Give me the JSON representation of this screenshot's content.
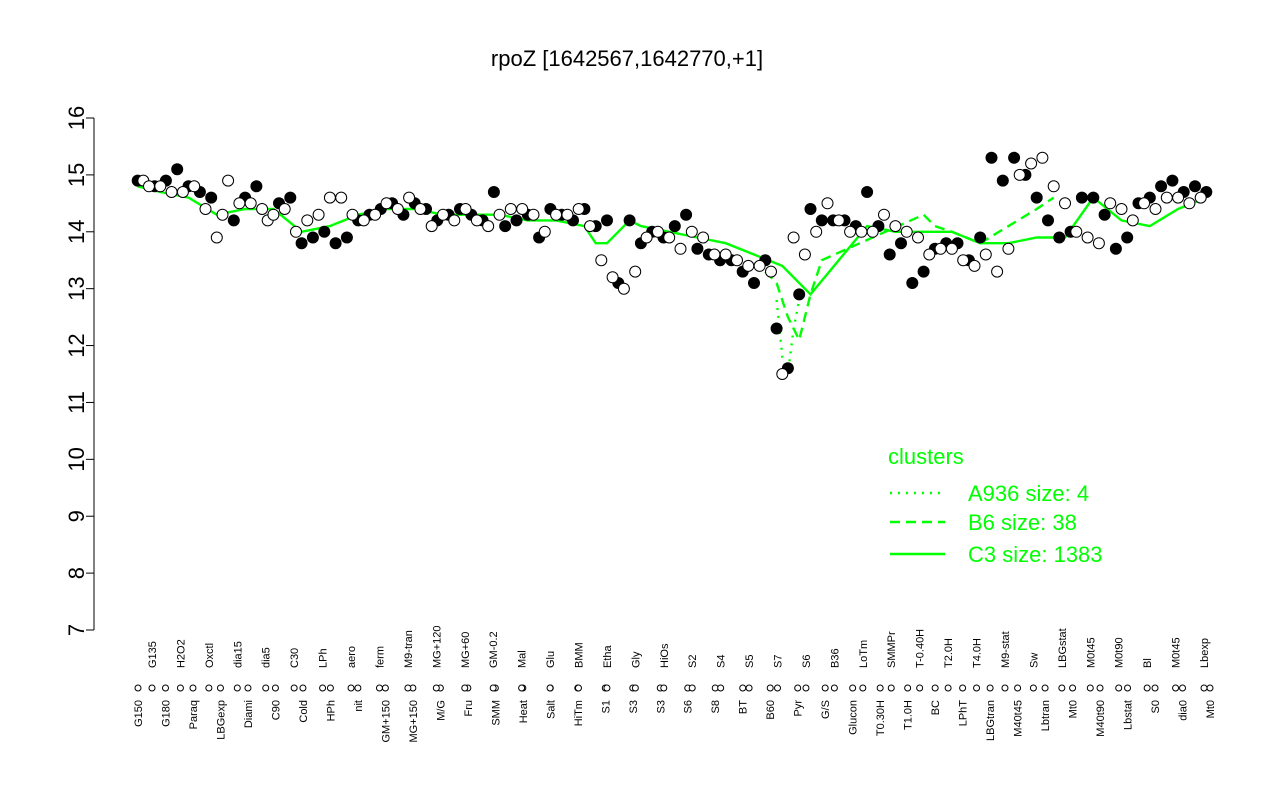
{
  "chart_data": {
    "type": "scatter",
    "title": "rpoZ [1642567,1642770,+1]",
    "xlabel": "",
    "ylabel": "",
    "ylim": [
      7,
      16
    ],
    "yticks": [
      7,
      8,
      9,
      10,
      11,
      12,
      13,
      14,
      15,
      16
    ],
    "xtick_labels_row1": [
      "G150",
      "G180",
      "Paraq",
      "LBGexp",
      "Diami",
      "C90",
      "Cold",
      "HPh",
      "nit",
      "GM+150",
      "MG+150",
      "M/G",
      "Fru",
      "SMM",
      "Heat",
      "Salt",
      "HiTm",
      "S1",
      "S3",
      "S3",
      "S6",
      "S8",
      "BT",
      "B60",
      "Pyr",
      "G/S",
      "Glucon",
      "T0.30H",
      "T1.0H",
      "BC",
      "LPhT",
      "LBGtran",
      "M40t45",
      "Lbtran",
      "Mt0",
      "M40t90",
      "Lbstat",
      "S0",
      "dia0",
      "Mt0"
    ],
    "xtick_labels_row2": [
      "G135",
      "H2O2",
      "Oxctl",
      "dia15",
      "dia5",
      "C30",
      "LPh",
      "aero",
      "ferm",
      "M9-tran",
      "MG+120",
      "MG+60",
      "GM-0.2",
      "Mal",
      "Glu",
      "BMM",
      "Etha",
      "Gly",
      "HiOs",
      "S2",
      "S4",
      "S5",
      "S7",
      "S6",
      "B36",
      "LoTm",
      "SMMPr",
      "T-0.40H",
      "T2.0H",
      "T4.0H",
      "M9-stat",
      "Sw",
      "LBGstat",
      "M0t45",
      "M0t90",
      "Bl",
      "M0t45",
      "Lbexp"
    ],
    "series": [
      {
        "name": "",
        "kind": "filled",
        "x": [
          1,
          4,
          6,
          8,
          10,
          12,
          14,
          18,
          20,
          22,
          26,
          28,
          30,
          32,
          34,
          36,
          38,
          40,
          42,
          44,
          46,
          48,
          50,
          52,
          54,
          56,
          58,
          60,
          62,
          64,
          66,
          68,
          70,
          72,
          74,
          76,
          78,
          80,
          82,
          84,
          86,
          88,
          90,
          92,
          94,
          96,
          98,
          100,
          102,
          104,
          106,
          108,
          110,
          112,
          114,
          116,
          118,
          120,
          122,
          124,
          126,
          128,
          130,
          132,
          134,
          136,
          138,
          140,
          142,
          144,
          146,
          148,
          150,
          152,
          154,
          156,
          158,
          160,
          162,
          164,
          166,
          168,
          170,
          172,
          174,
          176,
          178,
          180,
          182,
          184,
          186,
          188,
          190
        ],
        "y": [
          14.9,
          14.8,
          14.9,
          15.1,
          14.8,
          14.7,
          14.6,
          14.2,
          14.6,
          14.8,
          14.5,
          14.6,
          13.8,
          13.9,
          14.0,
          13.8,
          13.9,
          14.2,
          14.3,
          14.4,
          14.5,
          14.3,
          14.5,
          14.4,
          14.2,
          14.3,
          14.4,
          14.3,
          14.2,
          14.7,
          14.1,
          14.2,
          14.3,
          13.9,
          14.4,
          14.3,
          14.2,
          14.4,
          14.1,
          14.2,
          13.1,
          14.2,
          13.8,
          14.0,
          13.9,
          14.1,
          14.3,
          13.7,
          13.6,
          13.5,
          13.5,
          13.3,
          13.1,
          13.5,
          12.3,
          11.6,
          12.9,
          14.4,
          14.2,
          14.2,
          14.2,
          14.1,
          14.7,
          14.1,
          13.6,
          13.8,
          13.1,
          13.3,
          13.7,
          13.8,
          13.8,
          13.5,
          13.9,
          15.3,
          14.9,
          15.3,
          15.0,
          14.6,
          14.2,
          13.9,
          14.0,
          14.6,
          14.6,
          14.3,
          13.7,
          13.9,
          14.5,
          14.6,
          14.8,
          14.9,
          14.7,
          14.8,
          14.7
        ]
      },
      {
        "name": "",
        "kind": "open",
        "x": [
          2,
          3,
          5,
          7,
          9,
          11,
          13,
          15,
          16,
          17,
          19,
          21,
          23,
          24,
          25,
          27,
          29,
          31,
          33,
          35,
          37,
          39,
          41,
          43,
          45,
          47,
          49,
          51,
          53,
          55,
          57,
          59,
          61,
          63,
          65,
          67,
          69,
          71,
          73,
          75,
          77,
          79,
          81,
          83,
          85,
          87,
          89,
          91,
          93,
          95,
          97,
          99,
          101,
          103,
          105,
          107,
          109,
          111,
          113,
          115,
          117,
          119,
          121,
          123,
          125,
          127,
          129,
          131,
          133,
          135,
          137,
          139,
          141,
          143,
          145,
          147,
          149,
          151,
          153,
          155,
          157,
          159,
          161,
          163,
          165,
          167,
          169,
          171,
          173,
          175,
          177,
          179,
          181,
          183,
          185,
          187,
          189
        ],
        "y": [
          14.9,
          14.8,
          14.8,
          14.7,
          14.7,
          14.8,
          14.4,
          13.9,
          14.3,
          14.9,
          14.5,
          14.5,
          14.4,
          14.2,
          14.3,
          14.4,
          14.0,
          14.2,
          14.3,
          14.6,
          14.6,
          14.3,
          14.2,
          14.3,
          14.5,
          14.4,
          14.6,
          14.4,
          14.1,
          14.3,
          14.2,
          14.4,
          14.2,
          14.1,
          14.3,
          14.4,
          14.4,
          14.3,
          14.0,
          14.3,
          14.3,
          14.4,
          14.1,
          13.5,
          13.2,
          13.0,
          13.3,
          13.9,
          14.0,
          13.9,
          13.7,
          14.0,
          13.9,
          13.6,
          13.6,
          13.5,
          13.4,
          13.4,
          13.3,
          11.5,
          13.9,
          13.6,
          14.0,
          14.5,
          14.2,
          14.0,
          14.0,
          14.0,
          14.3,
          14.1,
          14.0,
          13.9,
          13.6,
          13.7,
          13.7,
          13.5,
          13.4,
          13.6,
          13.3,
          13.7,
          15.0,
          15.2,
          15.3,
          14.8,
          14.5,
          14.0,
          13.9,
          13.8,
          14.5,
          14.4,
          14.2,
          14.5,
          14.4,
          14.6,
          14.6,
          14.5,
          14.6
        ]
      },
      {
        "name": "C3 size: 1383",
        "kind": "line-c3",
        "x": [
          1,
          5,
          10,
          15,
          20,
          25,
          30,
          35,
          40,
          45,
          50,
          55,
          60,
          65,
          70,
          75,
          80,
          82,
          84,
          86,
          88,
          90,
          95,
          100,
          105,
          110,
          115,
          120,
          125,
          130,
          135,
          140,
          145,
          150,
          155,
          160,
          165,
          170,
          175,
          180,
          185,
          190
        ],
        "y": [
          14.8,
          14.7,
          14.6,
          14.3,
          14.4,
          14.4,
          14.0,
          14.1,
          14.3,
          14.4,
          14.4,
          14.3,
          14.3,
          14.3,
          14.2,
          14.2,
          14.1,
          13.8,
          13.8,
          14.0,
          14.2,
          14.1,
          14.0,
          13.9,
          13.8,
          13.6,
          13.4,
          12.9,
          13.5,
          14.1,
          14.0,
          14.0,
          14.0,
          13.8,
          13.8,
          13.9,
          13.9,
          14.6,
          14.2,
          14.1,
          14.4,
          14.6
        ]
      },
      {
        "name": "B6 size: 38",
        "kind": "line-b6",
        "x": [
          112,
          114,
          116,
          118,
          120,
          122,
          140,
          142,
          145,
          150,
          160,
          163
        ],
        "y": [
          13.3,
          13.1,
          12.5,
          12.1,
          12.9,
          13.5,
          14.3,
          14.1,
          14.0,
          13.8,
          14.4,
          14.6
        ]
      },
      {
        "name": "A936 size: 4",
        "kind": "line-a936",
        "x": [
          114,
          115,
          116,
          117,
          118
        ],
        "y": [
          12.8,
          11.8,
          11.5,
          12.3,
          12.8
        ]
      }
    ],
    "legend": {
      "title": "clusters",
      "placement": "bottom-right",
      "entries": [
        "A936 size: 4",
        "B6 size: 38",
        "C3 size: 1383"
      ]
    },
    "colors": {
      "cluster_line": "#00ff00",
      "points_filled": "#000000",
      "points_open": "#ffffff"
    }
  }
}
